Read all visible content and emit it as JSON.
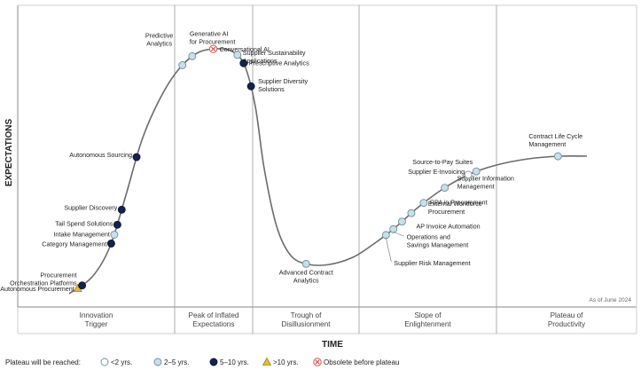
{
  "chart_data": {
    "type": "scatter",
    "title": "",
    "xlabel": "TIME",
    "ylabel": "EXPECTATIONS",
    "as_of": "As of June 2024",
    "phases": [
      "Innovation\nTrigger",
      "Peak of Inflated\nExpectations",
      "Trough of\nDisillusionment",
      "Slope of\nEnlightenment",
      "Plateau of\nProductivity"
    ],
    "legend_title": "Plateau will be reached:",
    "legend": [
      {
        "key": "lt2",
        "label": "<2 yrs.",
        "color": "#ffffff"
      },
      {
        "key": "2to5",
        "label": "2–5 yrs.",
        "color": "#c9dfe8"
      },
      {
        "key": "5to10",
        "label": "5–10 yrs.",
        "color": "#13234b"
      },
      {
        "key": "gt10",
        "label": ">10 yrs.",
        "color": "#e8b63a"
      },
      {
        "key": "obsolete",
        "label": "Obsolete before plateau",
        "color": "#d9534f"
      }
    ],
    "points": [
      {
        "name": "Autonomous Procurement",
        "t": 0.097,
        "cat": "gt10"
      },
      {
        "name": "Procurement\nOrchestration Platforms",
        "t": 0.104,
        "cat": "5to10"
      },
      {
        "name": "Category Management",
        "t": 0.151,
        "cat": "5to10"
      },
      {
        "name": "Intake Management",
        "t": 0.156,
        "cat": "2to5"
      },
      {
        "name": "Tail Spend Solutions",
        "t": 0.161,
        "cat": "5to10"
      },
      {
        "name": "Supplier Discovery",
        "t": 0.168,
        "cat": "5to10"
      },
      {
        "name": "Autonomous Sourcing",
        "t": 0.192,
        "cat": "5to10"
      },
      {
        "name": "Predictive\nAnalytics",
        "t": 0.266,
        "cat": "2to5"
      },
      {
        "name": "Generative AI\nfor Procurement",
        "t": 0.282,
        "cat": "2to5"
      },
      {
        "name": "Conversational AI",
        "t": 0.316,
        "cat": "obsolete"
      },
      {
        "name": "Supplier Sustainability\nApplications",
        "t": 0.355,
        "cat": "2to5"
      },
      {
        "name": "Prescriptive Analytics",
        "t": 0.365,
        "cat": "5to10"
      },
      {
        "name": "Supplier Diversity\nSolutions",
        "t": 0.377,
        "cat": "5to10"
      },
      {
        "name": "Advanced Contract\nAnalytics",
        "t": 0.466,
        "cat": "2to5"
      },
      {
        "name": "Supplier Risk Management",
        "t": 0.595,
        "cat": "2to5"
      },
      {
        "name": "Operations and\nSavings Management",
        "t": 0.607,
        "cat": "2to5"
      },
      {
        "name": "AP Invoice Automation",
        "t": 0.621,
        "cat": "2to5"
      },
      {
        "name": "External Workforce\nProcurement",
        "t": 0.636,
        "cat": "2to5"
      },
      {
        "name": "RPA in Procurement",
        "t": 0.656,
        "cat": "2to5"
      },
      {
        "name": "Supplier Information\nManagement",
        "t": 0.69,
        "cat": "2to5"
      },
      {
        "name": "Supplier E-Invoicing",
        "t": 0.728,
        "cat": "lt2"
      },
      {
        "name": "Source-to-Pay Suites",
        "t": 0.741,
        "cat": "2to5"
      },
      {
        "name": "Contract Life Cycle\nManagement",
        "t": 0.873,
        "cat": "2to5"
      }
    ]
  }
}
